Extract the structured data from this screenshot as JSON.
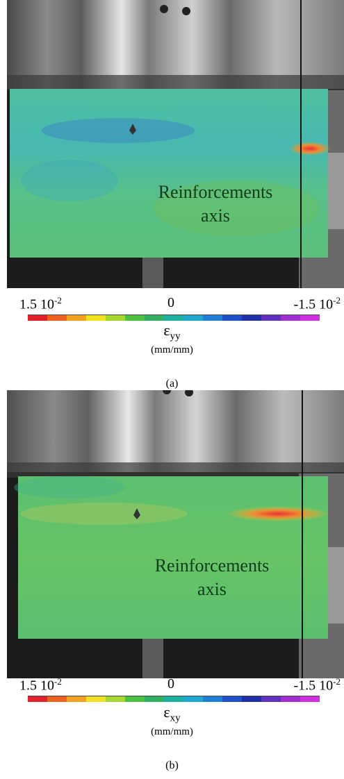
{
  "panels": [
    {
      "id": "a",
      "overlay_label_line1": "Reinforcements",
      "overlay_label_line2": "axis",
      "colorbar": {
        "min_label": "1.5 10",
        "min_exp": "-2",
        "mid_label": "0",
        "max_label": "-1.5 10",
        "max_exp": "-2"
      },
      "strain_symbol": "ε",
      "strain_subscript": "yy",
      "units": "(mm/mm)",
      "caption": "(a)"
    },
    {
      "id": "b",
      "overlay_label_line1": "Reinforcements",
      "overlay_label_line2": "axis",
      "colorbar": {
        "min_label": "1.5 10",
        "min_exp": "-2",
        "mid_label": "0",
        "max_label": "-1.5 10",
        "max_exp": "-2"
      },
      "strain_symbol": "ε",
      "strain_subscript": "xy",
      "units": "(mm/mm)",
      "caption": "(b)"
    }
  ],
  "colors": {
    "scale": [
      "#e0202a",
      "#f06020",
      "#f4a020",
      "#f0e020",
      "#a8d830",
      "#50c040",
      "#30b060",
      "#20b0a0",
      "#20a8d0",
      "#2080d8",
      "#2050c8",
      "#2030a8",
      "#6030c0",
      "#a030d0",
      "#d030e0"
    ]
  }
}
